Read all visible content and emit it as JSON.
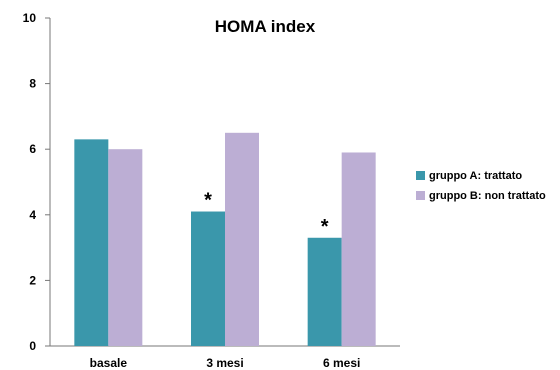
{
  "chart_data": {
    "type": "bar",
    "title": "HOMA index",
    "xlabel": "",
    "ylabel": "",
    "categories": [
      "basale",
      "3 mesi",
      "6 mesi"
    ],
    "series": [
      {
        "name": "gruppo A: trattato",
        "values": [
          6.3,
          4.1,
          3.3
        ],
        "color": "#3a97ab"
      },
      {
        "name": "gruppo B: non trattato",
        "values": [
          6.0,
          6.5,
          5.9
        ],
        "color": "#bcaed4"
      }
    ],
    "ylim": [
      0,
      10
    ],
    "yticks": [
      "0",
      "2",
      "4",
      "6",
      "8",
      "10"
    ],
    "annotations": [
      {
        "category": "3 mesi",
        "series": "gruppo A: trattato",
        "text": "*"
      },
      {
        "category": "6 mesi",
        "series": "gruppo A: trattato",
        "text": "*"
      }
    ],
    "grid": false,
    "legend_position": "right"
  }
}
